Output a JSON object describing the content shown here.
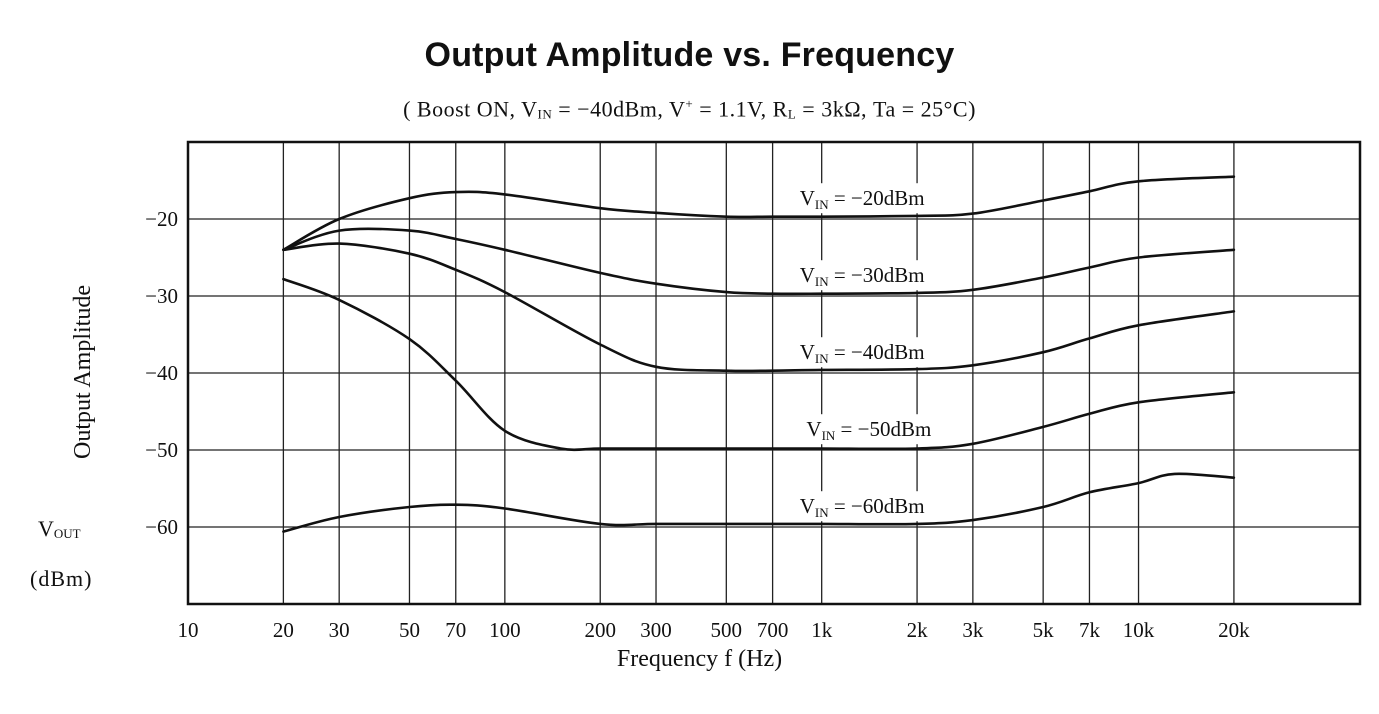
{
  "chart_data": {
    "type": "line",
    "title": "Output Amplitude vs. Frequency",
    "subtitle": {
      "prefix": "( Boost ON, V",
      "sub1": "IN",
      "mid1": " = −40dBm, V",
      "sup_mark": "+",
      "mid2": " = 1.1V, R",
      "sub2": "L",
      "mid3": " = 3kΩ, Ta = 25°C)"
    },
    "ylabel": "Output Amplitude",
    "yunit_symbol": "V",
    "yunit_sub": "OUT",
    "yunit": "(dBm)",
    "xlabel": "Frequency f (Hz)",
    "x_scale": "log",
    "xlim": [
      10,
      50000
    ],
    "ylim": [
      -70,
      -10
    ],
    "grid": true,
    "x_ticks": [
      {
        "value": 10,
        "label": "10"
      },
      {
        "value": 20,
        "label": "20"
      },
      {
        "value": 30,
        "label": "30"
      },
      {
        "value": 50,
        "label": "50"
      },
      {
        "value": 70,
        "label": "70"
      },
      {
        "value": 100,
        "label": "100"
      },
      {
        "value": 200,
        "label": "200"
      },
      {
        "value": 300,
        "label": "300"
      },
      {
        "value": 500,
        "label": "500"
      },
      {
        "value": 700,
        "label": "700"
      },
      {
        "value": 1000,
        "label": "1k"
      },
      {
        "value": 2000,
        "label": "2k"
      },
      {
        "value": 3000,
        "label": "3k"
      },
      {
        "value": 5000,
        "label": "5k"
      },
      {
        "value": 7000,
        "label": "7k"
      },
      {
        "value": 10000,
        "label": "10k"
      },
      {
        "value": 20000,
        "label": "20k"
      }
    ],
    "y_ticks": [
      {
        "value": -20,
        "label": "−20"
      },
      {
        "value": -30,
        "label": "−30"
      },
      {
        "value": -40,
        "label": "−40"
      },
      {
        "value": -50,
        "label": "−50"
      },
      {
        "value": -60,
        "label": "−60"
      }
    ],
    "series": [
      {
        "label_prefix": "V",
        "label_sub": "IN",
        "label_rest": " = −20dBm",
        "label_x": 1000,
        "label_y": -17.3,
        "x": [
          20,
          30,
          50,
          70,
          100,
          200,
          300,
          500,
          700,
          1000,
          2000,
          3000,
          5000,
          7000,
          10000,
          20000
        ],
        "y": [
          -24,
          -20,
          -17.3,
          -16.5,
          -16.8,
          -18.6,
          -19.2,
          -19.7,
          -19.7,
          -19.7,
          -19.6,
          -19.3,
          -17.6,
          -16.4,
          -15.1,
          -14.5
        ]
      },
      {
        "label_prefix": "V",
        "label_sub": "IN",
        "label_rest": " = −30dBm",
        "label_x": 1000,
        "label_y": -27.3,
        "x": [
          20,
          30,
          50,
          70,
          100,
          200,
          300,
          500,
          700,
          1000,
          2000,
          3000,
          5000,
          7000,
          10000,
          20000
        ],
        "y": [
          -24,
          -21.5,
          -21.5,
          -22.6,
          -24.0,
          -27.0,
          -28.4,
          -29.5,
          -29.7,
          -29.7,
          -29.6,
          -29.2,
          -27.6,
          -26.3,
          -25.0,
          -24.0
        ]
      },
      {
        "label_prefix": "V",
        "label_sub": "IN",
        "label_rest": " = −40dBm",
        "label_x": 1000,
        "label_y": -37.3,
        "x": [
          20,
          30,
          50,
          70,
          100,
          200,
          300,
          500,
          700,
          1000,
          2000,
          3000,
          5000,
          7000,
          10000,
          20000
        ],
        "y": [
          -24,
          -23.2,
          -24.5,
          -26.6,
          -29.5,
          -36.3,
          -39.2,
          -39.7,
          -39.7,
          -39.6,
          -39.5,
          -39.0,
          -37.3,
          -35.5,
          -33.8,
          -32.0
        ]
      },
      {
        "label_prefix": "V",
        "label_sub": "IN",
        "label_rest": " = −50dBm",
        "label_x": 1050,
        "label_y": -47.3,
        "x": [
          20,
          30,
          50,
          70,
          100,
          150,
          200,
          300,
          500,
          700,
          1000,
          2000,
          3000,
          5000,
          7000,
          10000,
          20000
        ],
        "y": [
          -27.8,
          -30.5,
          -35.6,
          -41.0,
          -47.5,
          -49.8,
          -49.8,
          -49.8,
          -49.8,
          -49.8,
          -49.8,
          -49.8,
          -49.2,
          -47.0,
          -45.3,
          -43.8,
          -42.5
        ]
      },
      {
        "label_prefix": "V",
        "label_sub": "IN",
        "label_rest": " = −60dBm",
        "label_x": 1000,
        "label_y": -57.3,
        "x": [
          20,
          30,
          50,
          70,
          100,
          200,
          300,
          500,
          700,
          1000,
          2000,
          3000,
          5000,
          7000,
          10000,
          13000,
          20000
        ],
        "y": [
          -60.6,
          -58.7,
          -57.4,
          -57.1,
          -57.6,
          -59.6,
          -59.6,
          -59.6,
          -59.6,
          -59.6,
          -59.6,
          -59.1,
          -57.4,
          -55.5,
          -54.3,
          -53.1,
          -53.6
        ]
      }
    ]
  }
}
